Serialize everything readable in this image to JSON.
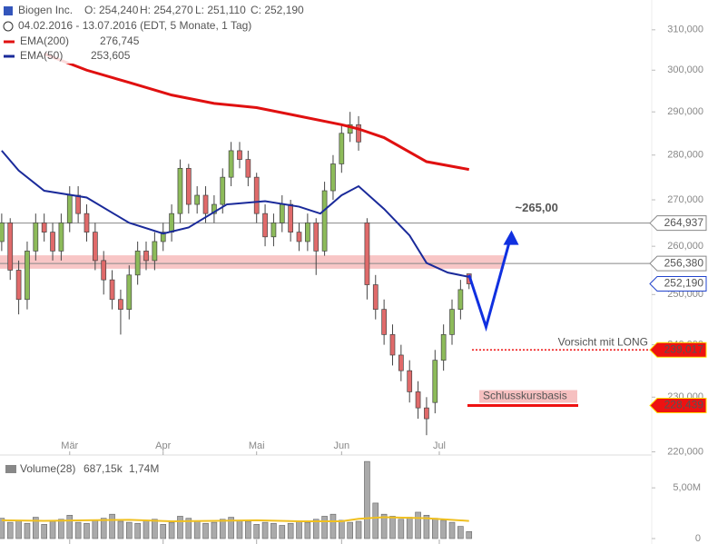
{
  "chart_data": [
    {
      "type": "candlestick",
      "title": "Biogen Inc.",
      "ohlc_labels": [
        "O: 254,240",
        "H: 254,270",
        "L: 251,110",
        "C: 252,190"
      ],
      "subtitle": "04.02.2016 - 13.07.2016 (EDT, 5 Monate, 1 Tag)",
      "log_scale": true,
      "up_color": "#8dbb5a",
      "down_color": "#e06a6a",
      "x": [
        0,
        2,
        4,
        6,
        8,
        10,
        12,
        14,
        16,
        18,
        20,
        22,
        24,
        26,
        28,
        30,
        32,
        34,
        36,
        38,
        40,
        42,
        44,
        46,
        48,
        50,
        52,
        54,
        56,
        58,
        60,
        62,
        64,
        66,
        68,
        70,
        72,
        74,
        76,
        78,
        80,
        82,
        84,
        86,
        88,
        90,
        92,
        94,
        96,
        98,
        100,
        102,
        104,
        106,
        108,
        110
      ],
      "open": [
        261,
        265,
        255,
        249,
        259,
        265,
        263,
        259,
        265,
        271,
        267,
        263,
        257,
        253,
        249,
        247,
        254,
        259,
        257,
        261,
        263,
        267,
        277,
        269,
        271,
        267,
        269,
        275,
        281,
        279,
        275,
        267,
        262,
        265,
        269,
        263,
        261,
        265,
        259,
        272,
        278,
        285,
        287,
        265,
        252,
        247,
        242,
        238,
        235,
        231,
        228,
        229,
        237,
        242,
        247,
        254.24
      ],
      "high": [
        267,
        266,
        257,
        261,
        267,
        267,
        265,
        267,
        273,
        273,
        269,
        265,
        259,
        255,
        251,
        256,
        261,
        261,
        263,
        265,
        269,
        279,
        278,
        273,
        273,
        271,
        277,
        283,
        283,
        281,
        276,
        269,
        267,
        271,
        270,
        265,
        267,
        266,
        274,
        280,
        287,
        290,
        289,
        266,
        254,
        249,
        244,
        240,
        237,
        233,
        230,
        239,
        244,
        249,
        253,
        254.27
      ],
      "low": [
        259,
        253,
        246,
        247,
        257,
        261,
        257,
        257,
        263,
        265,
        261,
        255,
        250,
        247,
        242,
        245,
        252,
        255,
        255,
        259,
        261,
        265,
        267,
        267,
        265,
        265,
        267,
        273,
        277,
        273,
        265,
        260,
        260,
        263,
        261,
        259,
        259,
        254,
        258,
        270,
        276,
        283,
        281,
        249,
        245,
        240,
        236,
        233,
        229,
        226,
        223,
        227,
        235,
        240,
        245,
        251.11
      ],
      "close": [
        265,
        255,
        249,
        259,
        265,
        263,
        259,
        265,
        271,
        267,
        263,
        257,
        253,
        249,
        247,
        254,
        259,
        257,
        261,
        263,
        267,
        277,
        269,
        271,
        267,
        269,
        275,
        281,
        279,
        275,
        267,
        262,
        265,
        269,
        263,
        261,
        265,
        259,
        272,
        278,
        285,
        287,
        283,
        252,
        247,
        242,
        238,
        235,
        231,
        228,
        226,
        237,
        242,
        247,
        251,
        252.19
      ],
      "series": [
        {
          "name": "EMA(200)",
          "value_label": "276,745",
          "color": "#e01010",
          "x": [
            10,
            20,
            30,
            40,
            50,
            60,
            70,
            80,
            84,
            90,
            100,
            110
          ],
          "values": [
            304,
            300,
            297,
            294,
            292,
            291,
            289,
            287,
            286,
            284,
            278.5,
            276.745
          ]
        },
        {
          "name": "EMA(50)",
          "value_label": "253,605",
          "color": "#1a2a9a",
          "x": [
            0,
            4,
            10,
            20,
            30,
            38,
            44,
            53,
            62,
            70,
            75,
            80,
            84,
            90,
            96,
            100,
            105,
            110
          ],
          "values": [
            281,
            276.5,
            272,
            270.5,
            265,
            262.7,
            264,
            269,
            269.7,
            268.5,
            267,
            271,
            273,
            268,
            262.3,
            256.5,
            254.5,
            253.605
          ]
        }
      ],
      "levels": [
        {
          "value": 264.937,
          "label": "264,937",
          "color": "#888888",
          "filled": false
        },
        {
          "value": 256.38,
          "label": "256,380",
          "color": "#888888",
          "filled": false
        },
        {
          "value": 252.19,
          "label": "252,190",
          "color": "#2244cc",
          "filled": false
        },
        {
          "value": 239.017,
          "label": "239,017",
          "color": "#ee1111",
          "filled": true,
          "note": "Vorsicht mit LONG"
        },
        {
          "value": 228.439,
          "label": "228,439",
          "color": "#ee1111",
          "filled": true,
          "note": "Schlusskursbasis"
        }
      ],
      "zone": [
        255.3,
        258.1
      ],
      "zone_color": "#f4a0a0",
      "projection": {
        "x": [
          110,
          114,
          120
        ],
        "values": [
          254,
          243.5,
          262.6
        ],
        "color": "#1030e0",
        "label": "~265,00"
      },
      "xlim": [
        -0.4,
        153
      ],
      "ylim": [
        219.6,
        317.6
      ],
      "xticks": [
        {
          "value": 16,
          "label": "Mär"
        },
        {
          "value": 38,
          "label": "Apr"
        },
        {
          "value": 60,
          "label": "Mai"
        },
        {
          "value": 80,
          "label": "Jun"
        },
        {
          "value": 103,
          "label": "Jul"
        }
      ],
      "yticks": [
        {
          "value": 220,
          "label": "220,000"
        },
        {
          "value": 230,
          "label": "230,000"
        },
        {
          "value": 240,
          "label": "240,000"
        },
        {
          "value": 250,
          "label": "250,000"
        },
        {
          "value": 260,
          "label": "260,000"
        },
        {
          "value": 270,
          "label": "270,000"
        },
        {
          "value": 280,
          "label": "280,000"
        },
        {
          "value": 290,
          "label": "290,000"
        },
        {
          "value": 300,
          "label": "300,000"
        },
        {
          "value": 310,
          "label": "310,000"
        }
      ]
    },
    {
      "type": "bar",
      "ylim": [
        0,
        7.7
      ],
      "yticks": [
        0,
        {
          "value": 5,
          "label": "5,00M"
        }
      ],
      "xlim": [
        -0.4,
        153
      ],
      "series": [
        {
          "name": "Volume(28)",
          "value_label": "687,15k",
          "color": "#aaaaaa",
          "x": [
            0,
            2,
            4,
            6,
            8,
            10,
            12,
            14,
            16,
            18,
            20,
            22,
            24,
            26,
            28,
            30,
            32,
            34,
            36,
            38,
            40,
            42,
            44,
            46,
            48,
            50,
            52,
            54,
            56,
            58,
            60,
            62,
            64,
            66,
            68,
            70,
            72,
            74,
            76,
            78,
            80,
            82,
            84,
            86,
            88,
            90,
            92,
            94,
            96,
            98,
            100,
            102,
            104,
            106,
            108,
            110
          ],
          "values": [
            2.0,
            1.6,
            1.8,
            1.5,
            2.1,
            1.4,
            1.7,
            1.9,
            2.3,
            1.6,
            1.5,
            1.8,
            2.0,
            2.4,
            1.7,
            1.6,
            1.5,
            1.8,
            1.9,
            1.4,
            1.6,
            2.2,
            2.0,
            1.7,
            1.5,
            1.6,
            1.9,
            2.1,
            1.8,
            1.7,
            1.4,
            1.6,
            1.5,
            1.3,
            1.5,
            1.7,
            1.6,
            1.9,
            2.2,
            2.4,
            1.8,
            1.6,
            1.7,
            7.6,
            3.5,
            2.4,
            2.2,
            1.9,
            2.1,
            2.6,
            2.3,
            2.0,
            1.8,
            1.6,
            1.2,
            0.68715
          ]
        },
        {
          "value_label": "1,74M",
          "color": "#f0c020",
          "x": [
            0,
            10,
            20,
            30,
            40,
            50,
            60,
            70,
            80,
            84,
            90,
            100,
            110
          ],
          "values": [
            1.8,
            1.75,
            1.8,
            1.85,
            1.7,
            1.75,
            1.8,
            1.7,
            1.7,
            1.95,
            2.1,
            2.0,
            1.74
          ]
        }
      ]
    }
  ]
}
